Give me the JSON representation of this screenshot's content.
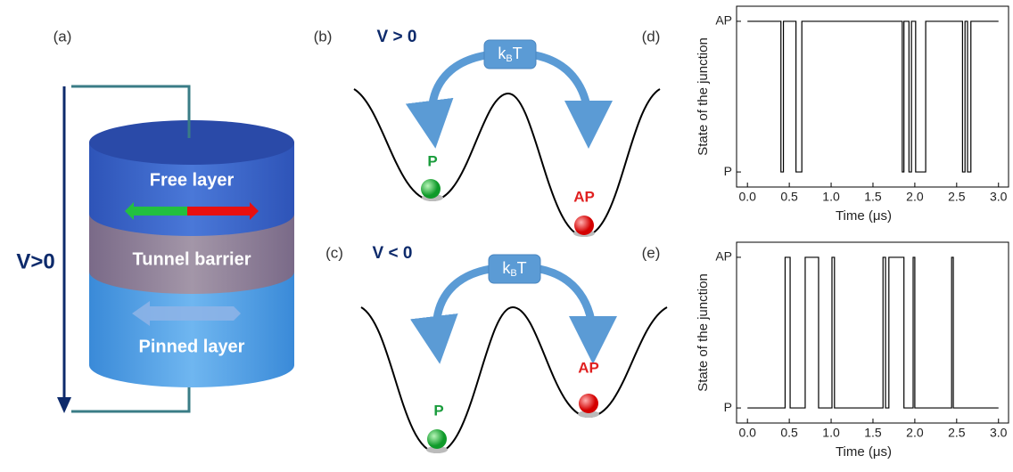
{
  "panel_labels": [
    "(a)",
    "(b)",
    "(c)",
    "(d)",
    "(e)"
  ],
  "junction": {
    "voltage": "V>0",
    "layers": [
      "Free layer",
      "Tunnel barrier",
      "Pinned layer"
    ]
  },
  "wells": [
    {
      "condition": "V > 0",
      "thermal": "k",
      "thermal_sub": "B",
      "thermal_end": "T",
      "states": [
        "P",
        "AP"
      ]
    },
    {
      "condition": "V < 0",
      "thermal": "k",
      "thermal_sub": "B",
      "thermal_end": "T",
      "states": [
        "P",
        "AP"
      ]
    }
  ],
  "chart_data": [
    {
      "type": "step",
      "x_label": "Time (μs)",
      "y_label": "State of the junction",
      "xlim": [
        -0.13,
        3.12
      ],
      "ylim": [
        -0.1,
        1.1
      ],
      "xticks": [
        {
          "value": 0,
          "label": "0.0"
        },
        {
          "value": 0.5,
          "label": "0.5"
        },
        {
          "value": 1,
          "label": "1.0"
        },
        {
          "value": 1.5,
          "label": "1.5"
        },
        {
          "value": 2,
          "label": "2.0"
        },
        {
          "value": 2.5,
          "label": "2.5"
        },
        {
          "value": 3,
          "label": "3.0"
        }
      ],
      "yticks": [
        {
          "value": 0,
          "label": "P"
        },
        {
          "value": 1,
          "label": "AP"
        }
      ],
      "ytick_colors": [
        "#1a9c3c",
        "#e02020"
      ],
      "color": "#000000",
      "x": [
        0,
        0.4,
        0.43,
        0.58,
        0.65,
        1.85,
        1.87,
        1.93,
        1.96,
        2.01,
        2.13,
        2.57,
        2.6,
        2.63,
        2.67,
        3.0
      ],
      "values": [
        1,
        0,
        1,
        0,
        1,
        0,
        1,
        0,
        1,
        0,
        1,
        0,
        1,
        0,
        1,
        1
      ]
    },
    {
      "type": "step",
      "x_label": "Time (μs)",
      "y_label": "State of the junction",
      "xlim": [
        -0.13,
        3.12
      ],
      "ylim": [
        -0.1,
        1.1
      ],
      "xticks": [
        {
          "value": 0,
          "label": "0.0"
        },
        {
          "value": 0.5,
          "label": "0.5"
        },
        {
          "value": 1,
          "label": "1.0"
        },
        {
          "value": 1.5,
          "label": "1.5"
        },
        {
          "value": 2,
          "label": "2.0"
        },
        {
          "value": 2.5,
          "label": "2.5"
        },
        {
          "value": 3,
          "label": "3.0"
        }
      ],
      "yticks": [
        {
          "value": 0,
          "label": "P"
        },
        {
          "value": 1,
          "label": "AP"
        }
      ],
      "ytick_colors": [
        "#1a9c3c",
        "#e02020"
      ],
      "color": "#000000",
      "x": [
        0,
        0.45,
        0.51,
        0.69,
        0.85,
        1.01,
        1.04,
        1.62,
        1.65,
        1.69,
        1.87,
        1.98,
        2.0,
        2.44,
        2.46,
        3.0
      ],
      "values": [
        0,
        1,
        0,
        1,
        0,
        1,
        0,
        1,
        0,
        1,
        0,
        1,
        0,
        1,
        0,
        0
      ]
    }
  ]
}
